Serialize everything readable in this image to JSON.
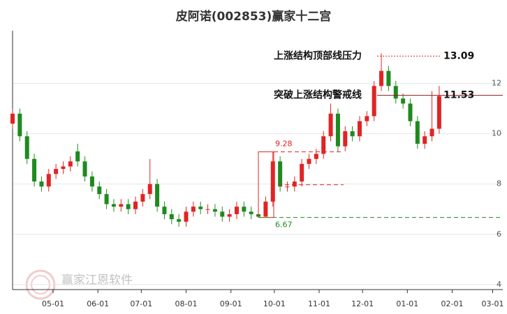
{
  "chart_data": {
    "type": "candlestick",
    "title": "皮阿诺(002853)赢家十二宫",
    "x": [
      "04-03",
      "04-08",
      "04-13",
      "04-18",
      "04-23",
      "04-28",
      "05-03",
      "05-08",
      "05-13",
      "05-18",
      "05-23",
      "05-28",
      "06-02",
      "06-07",
      "06-12",
      "06-17",
      "06-22",
      "06-27",
      "07-02",
      "07-07",
      "07-12",
      "07-17",
      "07-22",
      "07-27",
      "08-01",
      "08-06",
      "08-11",
      "08-16",
      "08-21",
      "08-26",
      "08-31",
      "09-05",
      "09-10",
      "09-15",
      "09-20",
      "09-25",
      "09-30",
      "10-05",
      "10-10",
      "10-15",
      "10-20",
      "10-25",
      "10-30",
      "11-04",
      "11-09",
      "11-14",
      "11-19",
      "11-24",
      "11-29",
      "12-04",
      "12-09",
      "12-14",
      "12-19",
      "12-24",
      "12-29",
      "01-03",
      "01-08",
      "01-13",
      "01-18",
      "01-23"
    ],
    "open": [
      10.4,
      10.8,
      9.9,
      9.0,
      8.1,
      7.9,
      8.4,
      8.6,
      8.7,
      9.3,
      8.9,
      8.3,
      7.9,
      7.6,
      7.2,
      7.1,
      7.2,
      7.0,
      7.3,
      7.6,
      8.0,
      7.1,
      6.8,
      6.6,
      6.5,
      6.9,
      7.1,
      7.0,
      7.0,
      6.9,
      6.7,
      6.8,
      7.1,
      6.9,
      6.8,
      6.7,
      7.3,
      8.9,
      7.9,
      7.9,
      8.1,
      8.8,
      9.0,
      9.2,
      9.9,
      10.8,
      9.5,
      10.1,
      9.9,
      10.5,
      10.7,
      11.9,
      12.5,
      11.9,
      11.4,
      11.2,
      10.5,
      9.6,
      9.9,
      10.2
    ],
    "high": [
      11.0,
      11.0,
      10.1,
      9.2,
      8.3,
      8.6,
      8.8,
      8.9,
      9.1,
      9.6,
      9.1,
      8.5,
      8.1,
      7.8,
      7.4,
      7.4,
      7.4,
      7.5,
      7.8,
      9.0,
      8.2,
      7.3,
      7.0,
      6.8,
      7.1,
      7.3,
      7.3,
      7.2,
      7.2,
      7.1,
      7.0,
      7.3,
      7.3,
      7.1,
      7.0,
      7.5,
      9.28,
      9.1,
      8.1,
      8.3,
      9.0,
      9.2,
      9.4,
      10.1,
      11.2,
      11.0,
      10.3,
      10.3,
      10.7,
      10.9,
      12.1,
      13.2,
      12.7,
      12.1,
      11.6,
      11.4,
      10.7,
      10.1,
      11.7,
      11.9
    ],
    "low": [
      10.2,
      9.7,
      8.8,
      7.9,
      7.7,
      7.7,
      8.2,
      8.4,
      8.5,
      8.7,
      8.1,
      7.7,
      7.4,
      7.0,
      6.9,
      6.9,
      6.8,
      6.8,
      7.1,
      7.4,
      6.9,
      6.6,
      6.4,
      6.3,
      6.3,
      6.7,
      6.8,
      6.8,
      6.7,
      6.5,
      6.5,
      6.6,
      6.7,
      6.6,
      6.67,
      6.7,
      7.1,
      7.7,
      7.7,
      7.7,
      7.9,
      8.6,
      8.8,
      9.0,
      9.7,
      9.3,
      9.3,
      9.7,
      9.7,
      10.3,
      10.5,
      11.7,
      11.7,
      11.2,
      11.0,
      10.3,
      9.4,
      9.4,
      9.7,
      10.0
    ],
    "close": [
      10.8,
      9.9,
      9.0,
      8.1,
      7.9,
      8.4,
      8.6,
      8.7,
      8.9,
      8.9,
      8.3,
      7.9,
      7.6,
      7.2,
      7.1,
      7.2,
      7.0,
      7.3,
      7.6,
      8.0,
      7.1,
      6.8,
      6.6,
      6.5,
      6.9,
      7.1,
      7.0,
      7.0,
      6.9,
      6.7,
      6.8,
      7.1,
      6.9,
      6.8,
      6.7,
      7.3,
      8.9,
      7.9,
      7.9,
      8.1,
      8.8,
      9.0,
      9.2,
      9.9,
      10.8,
      9.5,
      10.1,
      9.9,
      10.5,
      10.7,
      11.9,
      12.5,
      11.9,
      11.4,
      11.2,
      10.5,
      9.6,
      9.9,
      10.2,
      11.5
    ],
    "up_color": "#e02424",
    "down_color": "#1f8a1f",
    "xlim": [
      "04-03",
      "03-08"
    ],
    "xticks": [
      "05-01",
      "06-01",
      "07-01",
      "08-01",
      "09-01",
      "10-01",
      "11-01",
      "12-01",
      "01-01",
      "02-01",
      "03-01"
    ],
    "ylim": [
      3.8,
      14.1
    ],
    "yticks": [
      4,
      6,
      8,
      10,
      12
    ],
    "grid": true,
    "annotations": [
      {
        "label": "上涨结构顶部线压力",
        "value": 13.09,
        "color": "#e02424"
      },
      {
        "label": "突破上涨结构警戒线",
        "value": 11.53,
        "color": "#8b1a1a"
      }
    ],
    "box": {
      "high": 9.28,
      "low": 6.67,
      "mid": 7.97
    },
    "watermark": "赢家江恩软件"
  }
}
